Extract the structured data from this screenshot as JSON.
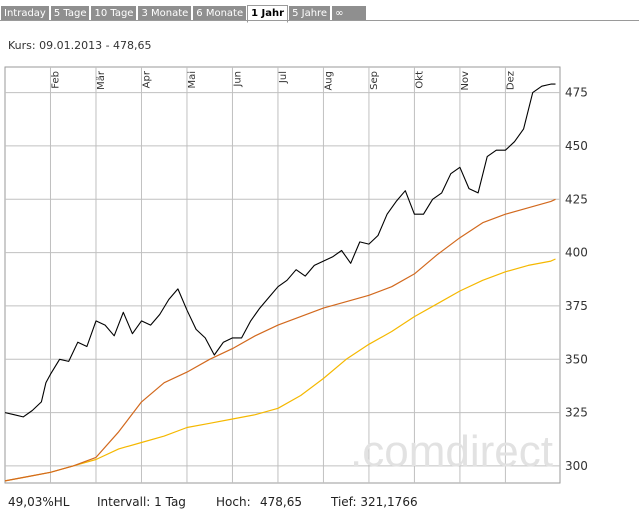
{
  "tabs": [
    "Intraday",
    "5 Tage",
    "10 Tage",
    "3 Monate",
    "6 Monate",
    "1 Jahr",
    "5 Jahre",
    "∞"
  ],
  "active_tab": "1 Jahr",
  "kurs_label": "Kurs: 09.01.2013 - 478,65",
  "watermark": ".comdirect",
  "footer": {
    "hl": "49,03%HL",
    "intervall": "Intervall: 1 Tag",
    "hoch_label": "Hoch:",
    "hoch_value": "478,65",
    "tief": "Tief: 321,1766"
  },
  "colors": {
    "price": "#000000",
    "ma_fast": "#d2691e",
    "ma_slow": "#f5b800",
    "grid": "#c0c0c0",
    "tab_bg": "#8f8f8f"
  },
  "chart_data": {
    "type": "line",
    "months": [
      "Feb",
      "Mär",
      "Apr",
      "Mai",
      "Jun",
      "Jul",
      "Aug",
      "Sep",
      "Okt",
      "Nov",
      "Dez"
    ],
    "y_ticks": [
      300,
      325,
      350,
      375,
      400,
      425,
      450,
      475
    ],
    "y_tick_labels": [
      "300",
      "325",
      "350",
      "375",
      "400",
      "425",
      "450",
      "475"
    ],
    "ylim": [
      292,
      487
    ],
    "month_start_x": [
      1,
      2,
      3,
      4,
      5,
      6,
      7,
      8,
      9,
      10,
      11
    ],
    "xlim": [
      0,
      12.2
    ],
    "series": [
      {
        "values_x": [
          0.0,
          0.2,
          0.4,
          0.6,
          0.8,
          0.9,
          1.0,
          1.2,
          1.4,
          1.6,
          1.8,
          2.0,
          2.2,
          2.4,
          2.6,
          2.8,
          3.0,
          3.2,
          3.4,
          3.6,
          3.8,
          4.0,
          4.2,
          4.4,
          4.6,
          4.8,
          5.0,
          5.2,
          5.4,
          5.6,
          5.8,
          6.0,
          6.2,
          6.4,
          6.6,
          6.8,
          7.0,
          7.2,
          7.4,
          7.6,
          7.8,
          8.0,
          8.2,
          8.4,
          8.6,
          8.8,
          9.0,
          9.2,
          9.4,
          9.6,
          9.8,
          10.0,
          10.2,
          10.4,
          10.6,
          10.8,
          11.0,
          11.2,
          11.4,
          11.6,
          11.8,
          12.0,
          12.1
        ],
        "values_y": [
          325,
          324,
          323,
          326,
          330,
          339,
          343,
          350,
          349,
          358,
          356,
          368,
          366,
          361,
          372,
          362,
          368,
          366,
          371,
          378,
          383,
          373,
          364,
          360,
          352,
          358,
          360,
          360,
          368,
          374,
          379,
          384,
          387,
          392,
          389,
          394,
          396,
          398,
          401,
          395,
          405,
          404,
          408,
          418,
          424,
          429,
          418,
          418,
          425,
          428,
          437,
          440,
          430,
          428,
          445,
          448,
          448,
          452,
          458,
          475,
          478,
          479,
          479
        ]
      },
      {
        "values_x": [
          0.0,
          0.5,
          1.0,
          1.5,
          2.0,
          2.5,
          3.0,
          3.5,
          4.0,
          4.5,
          5.0,
          5.5,
          6.0,
          6.5,
          7.0,
          7.5,
          8.0,
          8.5,
          9.0,
          9.5,
          10.0,
          10.5,
          11.0,
          11.5,
          12.0,
          12.1
        ],
        "values_y": [
          293,
          295,
          297,
          300,
          304,
          316,
          330,
          339,
          344,
          350,
          355,
          361,
          366,
          370,
          374,
          377,
          380,
          384,
          390,
          399,
          407,
          414,
          418,
          421,
          424,
          425
        ]
      },
      {
        "values_x": [
          0.0,
          0.5,
          1.0,
          1.5,
          2.0,
          2.5,
          3.0,
          3.5,
          4.0,
          4.5,
          5.0,
          5.5,
          6.0,
          6.5,
          7.0,
          7.5,
          8.0,
          8.5,
          9.0,
          9.5,
          10.0,
          10.5,
          11.0,
          11.5,
          12.0,
          12.1
        ],
        "values_y": [
          293,
          295,
          297,
          300,
          303,
          308,
          311,
          314,
          318,
          320,
          322,
          324,
          327,
          333,
          341,
          350,
          357,
          363,
          370,
          376,
          382,
          387,
          391,
          394,
          396,
          397
        ]
      }
    ]
  }
}
